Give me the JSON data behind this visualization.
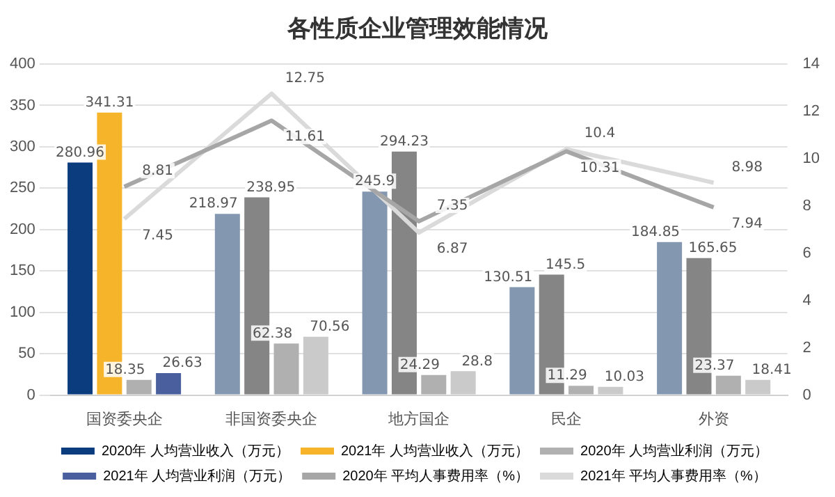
{
  "chart_data": {
    "type": "bar",
    "title": "各性质企业管理效能情况",
    "categories": [
      "国资委央企",
      "非国资委央企",
      "地方国企",
      "民企",
      "外资"
    ],
    "series": [
      {
        "name": "2020年 人均营业收入（万元）",
        "color": "#0b3d7e",
        "colors": [
          "#0b3d7e",
          "#8497b0",
          "#8497b0",
          "#8497b0",
          "#8497b0"
        ],
        "values": [
          280.96,
          218.97,
          245.9,
          130.51,
          184.85
        ]
      },
      {
        "name": "2021年 人均营业收入（万元）",
        "color": "#f6b42a",
        "colors": [
          "#f6b42a",
          "#858585",
          "#858585",
          "#858585",
          "#858585"
        ],
        "values": [
          341.31,
          238.95,
          294.23,
          145.5,
          165.65
        ]
      },
      {
        "name": "2020年 人均营业利润（万元）",
        "color": "#b0b0b0",
        "colors": [
          "#b0b0b0",
          "#b0b0b0",
          "#b0b0b0",
          "#b0b0b0",
          "#b0b0b0"
        ],
        "values": [
          18.35,
          62.38,
          24.29,
          11.29,
          23.37
        ]
      },
      {
        "name": "2021年 人均营业利润（万元）",
        "color": "#4a5f9e",
        "colors": [
          "#4a5f9e",
          "#cacaca",
          "#cacaca",
          "#cacaca",
          "#cacaca"
        ],
        "values": [
          26.63,
          70.56,
          28.8,
          10.03,
          18.41
        ]
      },
      {
        "name": "2020年 平均人事费用率（%）",
        "type": "line",
        "axis": "y2",
        "color": "#a6a6a6",
        "values": [
          8.81,
          11.61,
          7.35,
          10.31,
          7.94
        ]
      },
      {
        "name": "2021年 平均人事费用率（%）",
        "type": "line",
        "axis": "y2",
        "color": "#dadada",
        "values": [
          7.45,
          12.75,
          6.87,
          10.4,
          8.98
        ]
      }
    ],
    "ylim": [
      0,
      400
    ],
    "yticks": [
      0,
      50,
      100,
      150,
      200,
      250,
      300,
      350,
      400
    ],
    "y2lim": [
      0,
      14
    ],
    "y2ticks": [
      0,
      2,
      4,
      6,
      8,
      10,
      12,
      14
    ],
    "grid": "y",
    "legend": "bottom",
    "data_labels": true,
    "marker": "none"
  }
}
